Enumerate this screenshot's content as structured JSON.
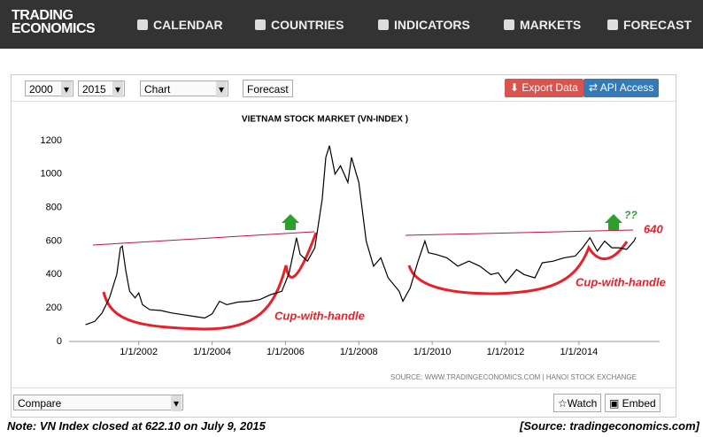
{
  "nav": {
    "logo_top": "TRADING",
    "logo_bottom": "ECONOMICS",
    "items": [
      "CALENDAR",
      "COUNTRIES",
      "INDICATORS",
      "MARKETS",
      "FORECAST"
    ]
  },
  "toolbar": {
    "start": "2000",
    "end": "2015",
    "view": "Chart",
    "forecast": "Forecast",
    "export": "Export Data",
    "api": "API Access",
    "compare": "Compare",
    "watch": "Watch",
    "embed": "Embed"
  },
  "chart_data": {
    "type": "line",
    "title": "VIETNAM STOCK MARKET (VN-INDEX )",
    "source": "SOURCE: WWW.TRADINGECONOMICS.COM  |  HANOI STOCK EXCHANGE",
    "x": [
      2000.55,
      2000.8,
      2001.0,
      2001.2,
      2001.4,
      2001.5,
      2001.55,
      2001.65,
      2001.75,
      2001.9,
      2002.0,
      2002.1,
      2002.3,
      2002.6,
      2002.9,
      2003.2,
      2003.5,
      2003.8,
      2004.0,
      2004.2,
      2004.4,
      2004.7,
      2005.0,
      2005.3,
      2005.6,
      2005.9,
      2006.1,
      2006.3,
      2006.4,
      2006.6,
      2006.8,
      2007.0,
      2007.1,
      2007.2,
      2007.35,
      2007.5,
      2007.7,
      2007.8,
      2008.0,
      2008.2,
      2008.4,
      2008.6,
      2008.8,
      2009.1,
      2009.2,
      2009.4,
      2009.6,
      2009.8,
      2009.9,
      2010.1,
      2010.4,
      2010.7,
      2011.0,
      2011.3,
      2011.6,
      2011.8,
      2012.0,
      2012.3,
      2012.5,
      2012.8,
      2013.0,
      2013.3,
      2013.6,
      2013.9,
      2014.1,
      2014.3,
      2014.5,
      2014.7,
      2014.9,
      2015.1,
      2015.3,
      2015.5,
      2015.55
    ],
    "values": [
      100,
      120,
      170,
      260,
      400,
      560,
      570,
      420,
      300,
      260,
      290,
      220,
      190,
      185,
      170,
      160,
      150,
      140,
      165,
      240,
      220,
      235,
      240,
      250,
      280,
      300,
      410,
      620,
      520,
      480,
      560,
      850,
      1100,
      1170,
      1000,
      1050,
      950,
      1100,
      950,
      600,
      450,
      500,
      380,
      300,
      240,
      320,
      470,
      600,
      530,
      520,
      500,
      450,
      480,
      450,
      400,
      410,
      350,
      430,
      400,
      380,
      470,
      480,
      500,
      510,
      560,
      620,
      540,
      600,
      560,
      560,
      550,
      600,
      622
    ],
    "color": "#000000",
    "xlim": [
      2000.1,
      2016.2
    ],
    "ylim": [
      0,
      1200
    ],
    "yticks": [
      0,
      200,
      400,
      600,
      800,
      1000,
      1200
    ],
    "xticks": [
      {
        "value": 2002,
        "label": "1/1/2002"
      },
      {
        "value": 2004,
        "label": "1/1/2004"
      },
      {
        "value": 2006,
        "label": "1/1/2006"
      },
      {
        "value": 2008,
        "label": "1/1/2008"
      },
      {
        "value": 2010,
        "label": "1/1/2010"
      },
      {
        "value": 2012,
        "label": "1/1/2012"
      },
      {
        "value": 2014,
        "label": "1/1/2014"
      }
    ],
    "grid": false,
    "annotations": {
      "cup_left": "Cup-with-handle",
      "cup_right": "Cup-with-handle",
      "level": "640",
      "question": "??"
    }
  },
  "note": "Note: VN Index closed at 622.10 on July 9, 2015",
  "source": "[Source: tradingeconomics.com]"
}
